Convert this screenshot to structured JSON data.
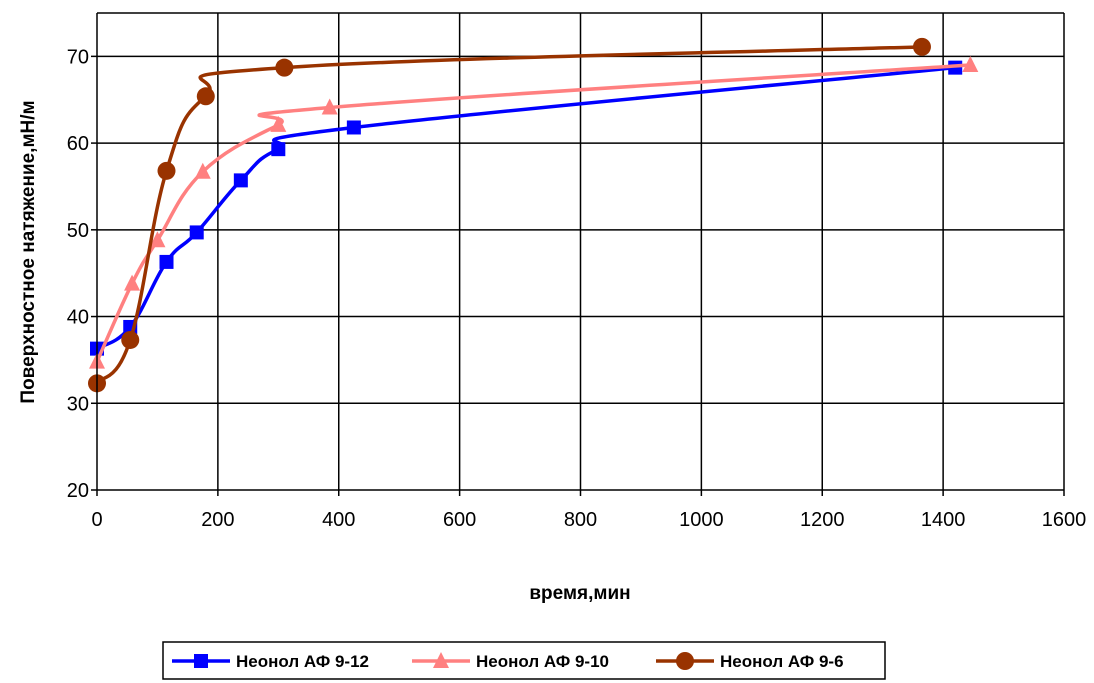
{
  "chart_data": {
    "type": "line",
    "title": "",
    "xlabel": "время,мин",
    "ylabel": "Поверхностное натяжение,мН/м",
    "xlim": [
      0,
      1600
    ],
    "ylim": [
      20,
      75
    ],
    "x_ticks": [
      0,
      200,
      400,
      600,
      800,
      1000,
      1200,
      1400,
      1600
    ],
    "y_ticks": [
      20,
      30,
      40,
      50,
      60,
      70
    ],
    "grid": true,
    "legend_position": "bottom",
    "series": [
      {
        "name": "Неонол АФ 9-12",
        "color": "#0000FF",
        "marker": "square",
        "x": [
          0,
          55,
          115,
          165,
          238,
          300,
          425,
          1420
        ],
        "y": [
          36.3,
          38.8,
          46.3,
          49.7,
          55.7,
          59.3,
          61.8,
          68.7
        ]
      },
      {
        "name": "Неонол АФ 9-10",
        "color": "#FF8080",
        "marker": "triangle",
        "x": [
          0,
          58,
          100,
          175,
          300,
          385,
          1445
        ],
        "y": [
          34.8,
          43.8,
          48.8,
          56.7,
          62.1,
          64.1,
          69.0
        ]
      },
      {
        "name": "Неонол АФ 9-6",
        "color": "#993300",
        "marker": "circle",
        "x": [
          0,
          55,
          115,
          180,
          310,
          1365
        ],
        "y": [
          32.3,
          37.3,
          56.8,
          65.4,
          68.7,
          71.1
        ]
      }
    ]
  }
}
